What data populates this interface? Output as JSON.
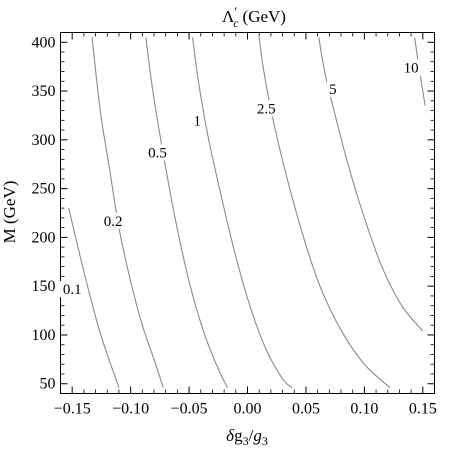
{
  "chart_data": {
    "type": "contour",
    "title": "Λ′c (GeV)",
    "title_main": "Λ",
    "title_prime": "′",
    "title_sub": "c",
    "title_unit": "(GeV)",
    "xlabel": "δg3/g3",
    "xlabel_parts": {
      "delta": "δ",
      "g1": "g",
      "s1": "3",
      "slash": "/",
      "g2": "g",
      "s2": "3"
    },
    "ylabel": "M (GeV)",
    "xlim": [
      -0.16,
      0.16
    ],
    "ylim": [
      40,
      410
    ],
    "xticks": [
      -0.15,
      -0.1,
      -0.05,
      0.0,
      0.05,
      0.1,
      0.15
    ],
    "xtick_labels": [
      "−0.15",
      "−0.10",
      "−0.05",
      "0.00",
      "0.05",
      "0.10",
      "0.15"
    ],
    "yticks": [
      50,
      100,
      150,
      200,
      250,
      300,
      350,
      400
    ],
    "ytick_labels": [
      "50",
      "100",
      "150",
      "200",
      "250",
      "300",
      "350",
      "400"
    ],
    "grid": false,
    "series": [
      {
        "label": "0.1",
        "points": [
          [
            -0.153,
            230
          ],
          [
            -0.14,
            165
          ],
          [
            -0.128,
            110
          ],
          [
            -0.12,
            80
          ],
          [
            -0.11,
            46
          ]
        ],
        "label_at": [
          -0.15,
          145
        ]
      },
      {
        "label": "0.2",
        "points": [
          [
            -0.133,
            405
          ],
          [
            -0.126,
            330
          ],
          [
            -0.118,
            270
          ],
          [
            -0.11,
            210
          ],
          [
            -0.1,
            155
          ],
          [
            -0.09,
            110
          ],
          [
            -0.08,
            75
          ],
          [
            -0.072,
            46
          ]
        ],
        "label_at": [
          -0.115,
          215
        ]
      },
      {
        "label": "0.5",
        "points": [
          [
            -0.087,
            405
          ],
          [
            -0.081,
            350
          ],
          [
            -0.072,
            285
          ],
          [
            -0.062,
            220
          ],
          [
            -0.05,
            155
          ],
          [
            -0.038,
            105
          ],
          [
            -0.025,
            65
          ],
          [
            -0.017,
            46
          ]
        ],
        "label_at": [
          -0.077,
          285
        ]
      },
      {
        "label": "1",
        "points": [
          [
            -0.047,
            405
          ],
          [
            -0.042,
            360
          ],
          [
            -0.034,
            305
          ],
          [
            -0.023,
            245
          ],
          [
            -0.011,
            185
          ],
          [
            0.002,
            130
          ],
          [
            0.016,
            85
          ],
          [
            0.03,
            55
          ],
          [
            0.038,
            46
          ]
        ],
        "label_at": [
          -0.043,
          318
        ]
      },
      {
        "label": "2.5",
        "points": [
          [
            0.01,
            405
          ],
          [
            0.014,
            370
          ],
          [
            0.022,
            320
          ],
          [
            0.034,
            260
          ],
          [
            0.048,
            200
          ],
          [
            0.062,
            150
          ],
          [
            0.08,
            105
          ],
          [
            0.1,
            70
          ],
          [
            0.122,
            46
          ]
        ],
        "label_at": [
          0.016,
          330
        ]
      },
      {
        "label": "5",
        "points": [
          [
            0.061,
            405
          ],
          [
            0.066,
            370
          ],
          [
            0.074,
            330
          ],
          [
            0.086,
            275
          ],
          [
            0.1,
            220
          ],
          [
            0.115,
            170
          ],
          [
            0.132,
            130
          ],
          [
            0.15,
            104
          ]
        ],
        "label_at": [
          0.073,
          350
        ]
      },
      {
        "label": "10",
        "points": [
          [
            0.143,
            405
          ],
          [
            0.146,
            380
          ],
          [
            0.148,
            365
          ],
          [
            0.152,
            335
          ]
        ],
        "label_at": [
          0.14,
          372
        ]
      }
    ]
  }
}
